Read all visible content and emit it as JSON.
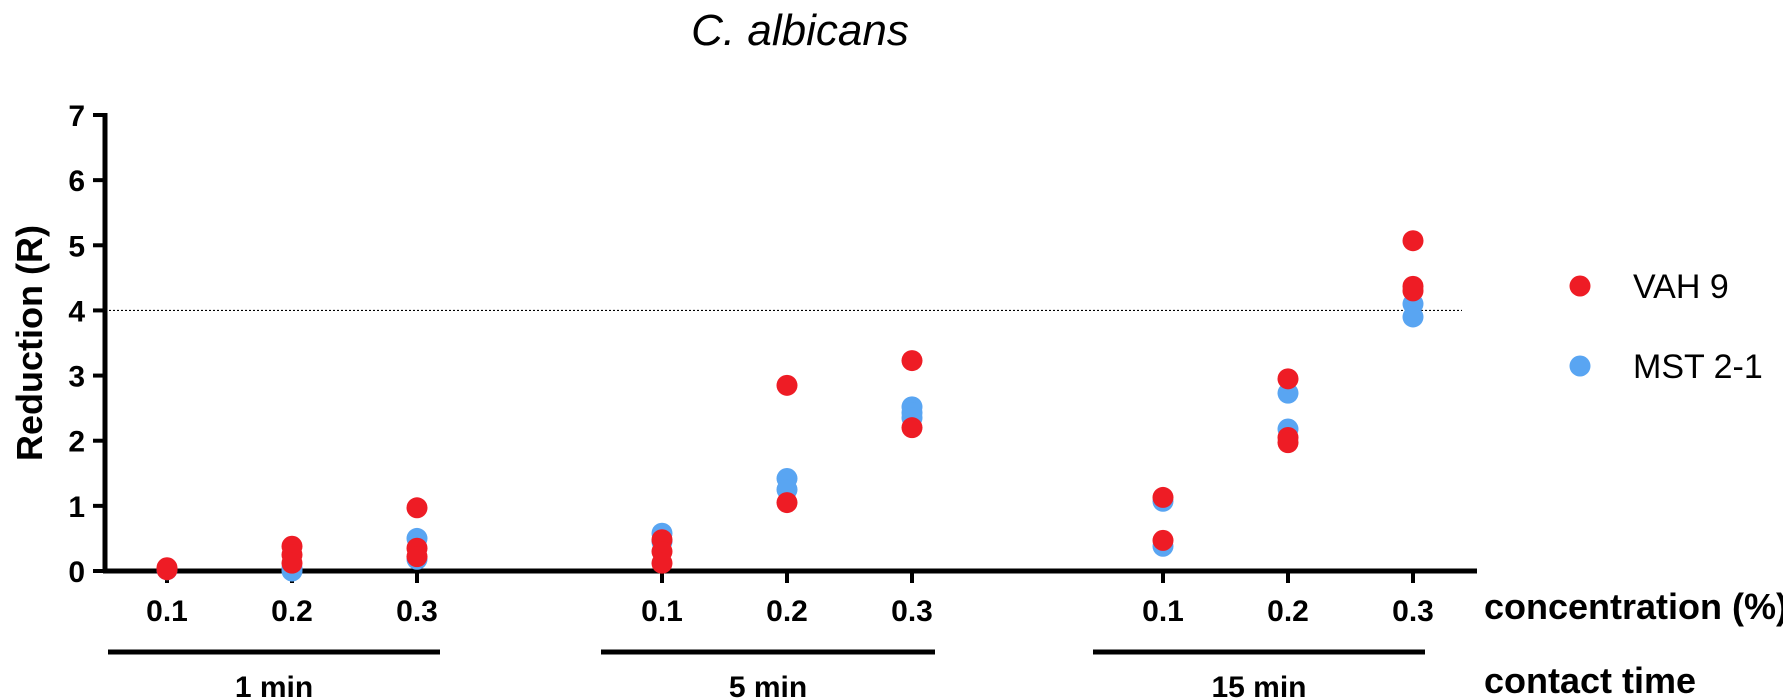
{
  "chart_data": {
    "type": "scatter",
    "title": "C. albicans",
    "ylabel": "Reduction (R)",
    "ylim": [
      0,
      7
    ],
    "yticks": [
      "0",
      "1",
      "2",
      "3",
      "4",
      "5",
      "6",
      "7"
    ],
    "reference_line": 4,
    "x_axis_label": "concentration (%)",
    "group_axis_label": "contact time",
    "groups": [
      {
        "label": "1 min",
        "concentrations": [
          "0.1",
          "0.2",
          "0.3"
        ]
      },
      {
        "label": "5 min",
        "concentrations": [
          "0.1",
          "0.2",
          "0.3"
        ]
      },
      {
        "label": "15 min",
        "concentrations": [
          "0.1",
          "0.2",
          "0.3"
        ]
      }
    ],
    "legend_position": "right",
    "series": [
      {
        "name": "VAH 9",
        "color": "#ee1c25",
        "points": [
          {
            "group": "1 min",
            "concentration": "0.1",
            "values": [
              0.05,
              0.02
            ]
          },
          {
            "group": "1 min",
            "concentration": "0.2",
            "values": [
              0.38,
              0.25,
              0.12
            ]
          },
          {
            "group": "1 min",
            "concentration": "0.3",
            "values": [
              0.97,
              0.35,
              0.22
            ]
          },
          {
            "group": "5 min",
            "concentration": "0.1",
            "values": [
              0.48,
              0.3,
              0.12
            ]
          },
          {
            "group": "5 min",
            "concentration": "0.2",
            "values": [
              2.85,
              1.05
            ]
          },
          {
            "group": "5 min",
            "concentration": "0.3",
            "values": [
              3.23,
              2.2
            ]
          },
          {
            "group": "15 min",
            "concentration": "0.1",
            "values": [
              1.13,
              0.47
            ]
          },
          {
            "group": "15 min",
            "concentration": "0.2",
            "values": [
              2.95,
              2.05,
              1.97
            ]
          },
          {
            "group": "15 min",
            "concentration": "0.3",
            "values": [
              5.07,
              4.37,
              4.3
            ]
          }
        ]
      },
      {
        "name": "MST 2-1",
        "color": "#59a5f2",
        "points": [
          {
            "group": "1 min",
            "concentration": "0.1",
            "values": [
              0.02
            ]
          },
          {
            "group": "1 min",
            "concentration": "0.2",
            "values": [
              0.05,
              0.0
            ]
          },
          {
            "group": "1 min",
            "concentration": "0.3",
            "values": [
              0.5,
              0.18
            ]
          },
          {
            "group": "5 min",
            "concentration": "0.1",
            "values": [
              0.58,
              0.45
            ]
          },
          {
            "group": "5 min",
            "concentration": "0.2",
            "values": [
              1.42,
              1.25
            ]
          },
          {
            "group": "5 min",
            "concentration": "0.3",
            "values": [
              2.52,
              2.43,
              2.35
            ]
          },
          {
            "group": "15 min",
            "concentration": "0.1",
            "values": [
              1.07,
              0.38
            ]
          },
          {
            "group": "15 min",
            "concentration": "0.2",
            "values": [
              2.73,
              2.18
            ]
          },
          {
            "group": "15 min",
            "concentration": "0.3",
            "values": [
              4.1,
              3.9
            ]
          }
        ]
      }
    ]
  }
}
